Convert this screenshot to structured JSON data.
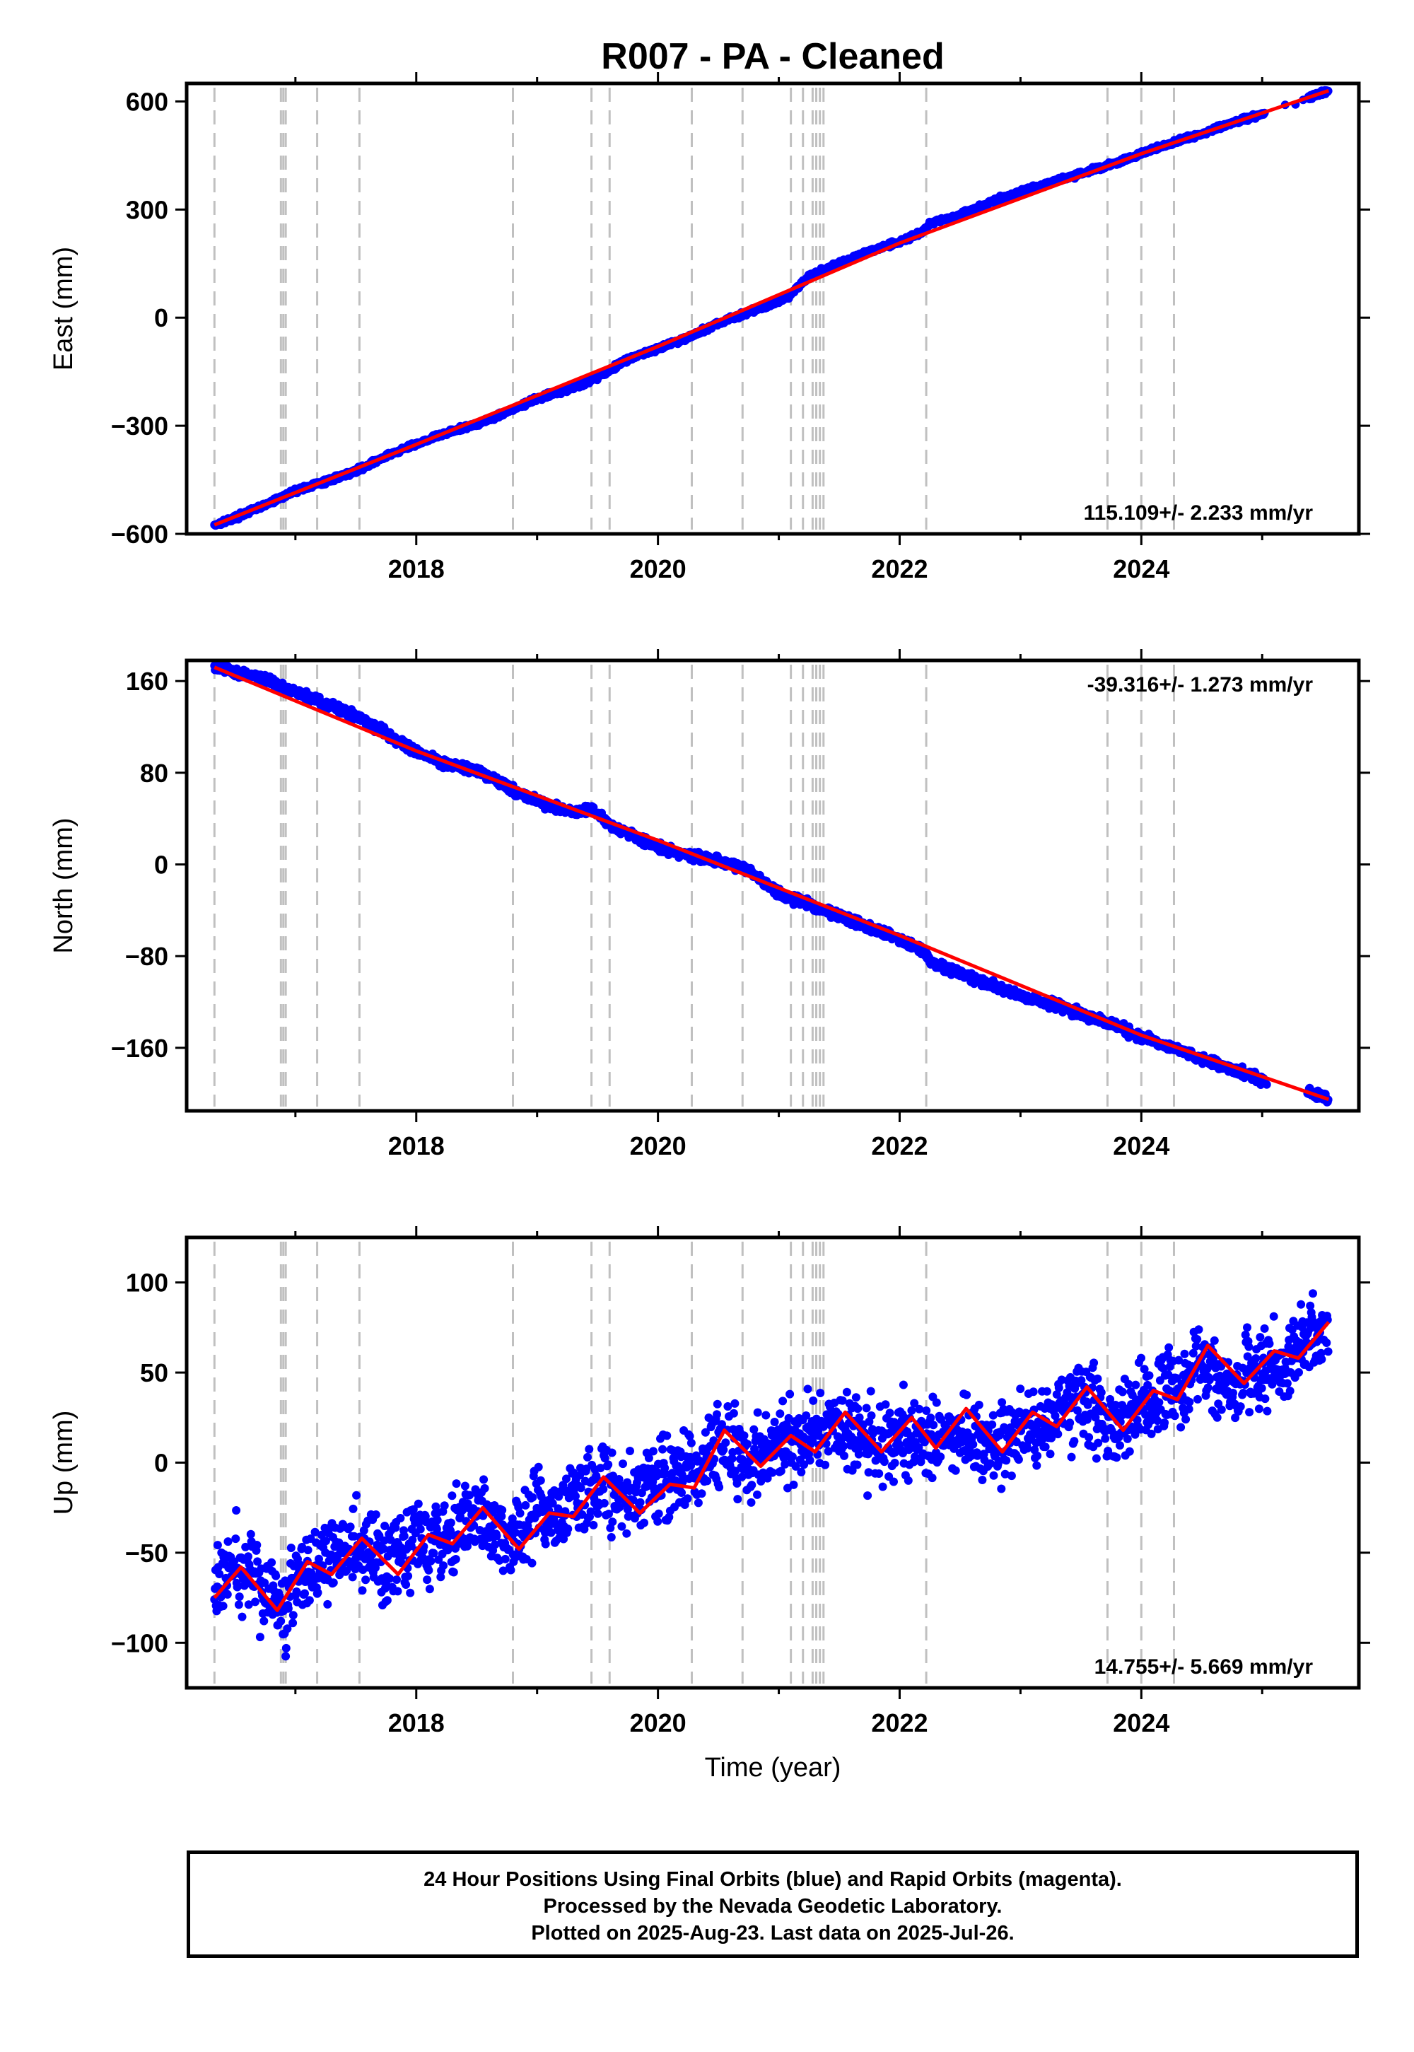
{
  "title": "R007  - PA - Cleaned",
  "colors": {
    "data_points": "#0000ff",
    "model_line": "#ff0000",
    "equipment_change_lines": "#c0c0c0",
    "frame": "#000000"
  },
  "chart_data": [
    {
      "type": "scatter",
      "component": "east",
      "ylabel": "East (mm)",
      "xlabel": "",
      "xlim": [
        2016.1,
        2025.8
      ],
      "ylim": [
        -600,
        650
      ],
      "yticks": [
        -600,
        -300,
        0,
        300,
        600
      ],
      "ytick_labels": [
        "−600",
        "−300",
        "0",
        "300",
        "600"
      ],
      "xticks": [
        2018,
        2020,
        2022,
        2024
      ],
      "xtick_labels": [
        "2018",
        "2020",
        "2022",
        "2024"
      ],
      "velocity_label": "115.109+/- 2.233 mm/yr",
      "velocity_position": "bottom-right",
      "series": [
        {
          "role": "daily positions",
          "x": [
            2016.33,
            2016.5,
            2016.75,
            2017.0,
            2017.25,
            2017.5,
            2017.75,
            2018.0,
            2018.25,
            2018.5,
            2018.8,
            2019.0,
            2019.3,
            2019.5,
            2019.75,
            2020.0,
            2020.25,
            2020.5,
            2020.75,
            2021.0,
            2021.1,
            2021.25,
            2021.5,
            2021.75,
            2022.0,
            2022.2,
            2022.25,
            2022.5,
            2022.75,
            2023.0,
            2023.25,
            2023.5,
            2023.75,
            2024.0,
            2024.25,
            2024.5,
            2024.75,
            2025.0,
            2025.3,
            2025.55
          ],
          "y": [
            -575,
            -555,
            -520,
            -480,
            -455,
            -425,
            -385,
            -350,
            -320,
            -295,
            -255,
            -225,
            -195,
            -165,
            -115,
            -85,
            -55,
            -15,
            15,
            45,
            65,
            115,
            150,
            185,
            210,
            240,
            260,
            285,
            320,
            350,
            375,
            400,
            425,
            455,
            485,
            510,
            540,
            565,
            600,
            630
          ]
        },
        {
          "role": "model fit",
          "x": [
            2016.33,
            2018.0,
            2020.0,
            2022.0,
            2024.0,
            2025.55
          ],
          "y": [
            -575,
            -352,
            -80,
            207,
            455,
            630
          ]
        }
      ]
    },
    {
      "type": "scatter",
      "component": "north",
      "ylabel": "North (mm)",
      "xlabel": "",
      "xlim": [
        2016.1,
        2025.8
      ],
      "ylim": [
        -215,
        178
      ],
      "yticks": [
        -160,
        -80,
        0,
        80,
        160
      ],
      "ytick_labels": [
        "−160",
        "−80",
        "0",
        "80",
        "160"
      ],
      "xticks": [
        2018,
        2020,
        2022,
        2024
      ],
      "xtick_labels": [
        "2018",
        "2020",
        "2022",
        "2024"
      ],
      "velocity_label": "-39.316+/- 1.273 mm/yr",
      "velocity_position": "top-right",
      "series": [
        {
          "role": "daily positions",
          "x": [
            2016.33,
            2016.5,
            2016.75,
            2016.88,
            2017.0,
            2017.25,
            2017.5,
            2017.75,
            2018.0,
            2018.25,
            2018.5,
            2018.8,
            2019.0,
            2019.3,
            2019.45,
            2019.6,
            2019.8,
            2020.0,
            2020.25,
            2020.5,
            2020.75,
            2021.0,
            2021.25,
            2021.5,
            2021.75,
            2022.0,
            2022.2,
            2022.25,
            2022.5,
            2022.75,
            2023.0,
            2023.25,
            2023.5,
            2023.75,
            2024.0,
            2024.25,
            2024.5,
            2024.75,
            2025.0,
            2025.3,
            2025.55
          ],
          "y": [
            172,
            168,
            162,
            156,
            151,
            140,
            130,
            115,
            98,
            88,
            82,
            65,
            55,
            45,
            48,
            35,
            25,
            15,
            8,
            3,
            -5,
            -25,
            -35,
            -45,
            -55,
            -65,
            -75,
            -85,
            -95,
            -105,
            -115,
            -122,
            -130,
            -140,
            -150,
            -160,
            -170,
            -178,
            -188,
            -195,
            -205
          ]
        },
        {
          "role": "model fit",
          "x": [
            2016.33,
            2018.0,
            2020.0,
            2022.0,
            2024.0,
            2025.55
          ],
          "y": [
            172,
            99,
            21,
            -62,
            -149,
            -205
          ]
        }
      ]
    },
    {
      "type": "scatter",
      "component": "up",
      "ylabel": "Up (mm)",
      "xlabel": "Time (year)",
      "xlim": [
        2016.1,
        2025.8
      ],
      "ylim": [
        -125,
        125
      ],
      "yticks": [
        -100,
        -50,
        0,
        50,
        100
      ],
      "ytick_labels": [
        "−100",
        "−50",
        "0",
        "50",
        "100"
      ],
      "xticks": [
        2018,
        2020,
        2022,
        2024
      ],
      "xtick_labels": [
        "2018",
        "2020",
        "2022",
        "2024"
      ],
      "velocity_label": "14.755+/- 5.669 mm/yr",
      "velocity_position": "bottom-right",
      "series": [
        {
          "role": "daily positions",
          "x": [
            2016.33,
            2016.5,
            2016.75,
            2016.9,
            2017.0,
            2017.25,
            2017.5,
            2017.75,
            2018.0,
            2018.25,
            2018.5,
            2018.8,
            2019.0,
            2019.25,
            2019.5,
            2019.75,
            2020.0,
            2020.25,
            2020.5,
            2020.75,
            2021.0,
            2021.25,
            2021.5,
            2021.75,
            2022.0,
            2022.25,
            2022.5,
            2022.75,
            2023.0,
            2023.25,
            2023.5,
            2023.75,
            2024.0,
            2024.25,
            2024.5,
            2024.75,
            2025.3,
            2025.55
          ],
          "y": [
            -70,
            -58,
            -68,
            -85,
            -60,
            -55,
            -48,
            -55,
            -42,
            -38,
            -30,
            -45,
            -28,
            -25,
            -10,
            -20,
            -12,
            -5,
            10,
            0,
            10,
            15,
            20,
            10,
            15,
            12,
            20,
            8,
            18,
            25,
            35,
            20,
            30,
            38,
            55,
            45,
            60,
            78
          ]
        },
        {
          "role": "model fit",
          "x": [
            2016.33,
            2016.55,
            2016.85,
            2017.1,
            2017.3,
            2017.55,
            2017.85,
            2018.1,
            2018.3,
            2018.55,
            2018.85,
            2019.1,
            2019.3,
            2019.55,
            2019.85,
            2020.1,
            2020.3,
            2020.55,
            2020.85,
            2021.1,
            2021.3,
            2021.55,
            2021.85,
            2022.1,
            2022.3,
            2022.55,
            2022.85,
            2023.1,
            2023.3,
            2023.55,
            2023.85,
            2024.1,
            2024.3,
            2024.55,
            2024.85,
            2025.1,
            2025.3,
            2025.55
          ],
          "y": [
            -75,
            -58,
            -82,
            -55,
            -62,
            -42,
            -62,
            -40,
            -45,
            -25,
            -48,
            -28,
            -30,
            -8,
            -28,
            -12,
            -14,
            18,
            -2,
            15,
            6,
            28,
            6,
            25,
            8,
            30,
            6,
            28,
            20,
            42,
            18,
            40,
            35,
            65,
            44,
            62,
            58,
            78
          ]
        }
      ]
    }
  ],
  "footer": {
    "line1": "24 Hour Positions Using Final Orbits (blue) and Rapid Orbits (magenta).",
    "line2": "Processed by the Nevada Geodetic Laboratory.",
    "line3": "Plotted on 2025-Aug-23. Last data on 2025-Jul-26."
  }
}
